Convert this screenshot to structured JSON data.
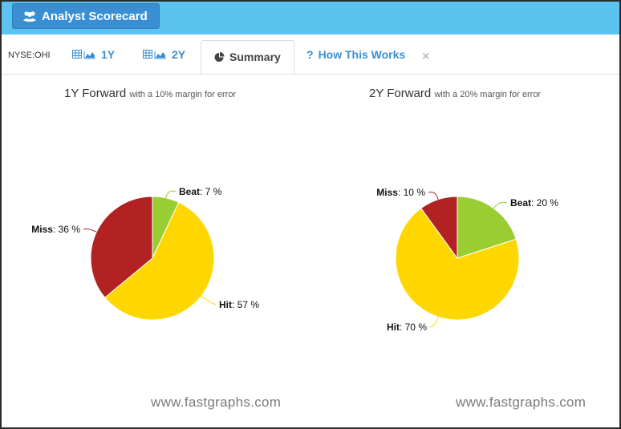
{
  "header": {
    "title": "Analyst Scorecard",
    "icon": "users-icon"
  },
  "tabs": {
    "ticker": "NYSE:OHI",
    "items": [
      {
        "label": "1Y",
        "icon": "table-chart-icon"
      },
      {
        "label": "2Y",
        "icon": "table-chart-icon"
      },
      {
        "label": "Summary",
        "icon": "pie-chart-icon",
        "active": true
      },
      {
        "label": "How This Works",
        "icon": "question-icon"
      }
    ],
    "close": "×"
  },
  "charts": [
    {
      "title": "1Y Forward",
      "subtitle": "with a 10% margin for error"
    },
    {
      "title": "2Y Forward",
      "subtitle": "with a 20% margin for error"
    }
  ],
  "watermark": "www.fastgraphs.com",
  "colors": {
    "beat": "#9acd32",
    "hit": "#ffd700",
    "miss": "#b22222",
    "topbar": "#5bc3ef",
    "tab_blue": "#3a8fd3"
  },
  "chart_data": [
    {
      "type": "pie",
      "title": "1Y Forward",
      "subtitle": "with a 10% margin for error",
      "slices": [
        {
          "name": "Beat",
          "value": 7,
          "label": ": 7 %",
          "color": "#9acd32"
        },
        {
          "name": "Hit",
          "value": 57,
          "label": ": 57 %",
          "color": "#ffd700"
        },
        {
          "name": "Miss",
          "value": 36,
          "label": ": 36 %",
          "color": "#b22222"
        }
      ]
    },
    {
      "type": "pie",
      "title": "2Y Forward",
      "subtitle": "with a 20% margin for error",
      "slices": [
        {
          "name": "Beat",
          "value": 20,
          "label": ": 20 %",
          "color": "#9acd32"
        },
        {
          "name": "Hit",
          "value": 70,
          "label": ": 70 %",
          "color": "#ffd700"
        },
        {
          "name": "Miss",
          "value": 10,
          "label": ": 10 %",
          "color": "#b22222"
        }
      ]
    }
  ]
}
